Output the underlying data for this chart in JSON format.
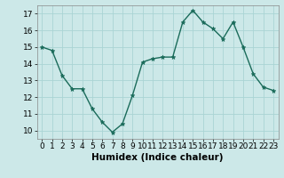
{
  "x": [
    0,
    1,
    2,
    3,
    4,
    5,
    6,
    7,
    8,
    9,
    10,
    11,
    12,
    13,
    14,
    15,
    16,
    17,
    18,
    19,
    20,
    21,
    22,
    23
  ],
  "y": [
    15.0,
    14.8,
    13.3,
    12.5,
    12.5,
    11.3,
    10.5,
    9.9,
    10.4,
    12.1,
    14.1,
    14.3,
    14.4,
    14.4,
    16.5,
    17.2,
    16.5,
    16.1,
    15.5,
    16.5,
    15.0,
    13.4,
    12.6,
    12.4
  ],
  "xlabel": "Humidex (Indice chaleur)",
  "xlim": [
    -0.5,
    23.5
  ],
  "ylim": [
    9.5,
    17.5
  ],
  "yticks": [
    10,
    11,
    12,
    13,
    14,
    15,
    16,
    17
  ],
  "xticks": [
    0,
    1,
    2,
    3,
    4,
    5,
    6,
    7,
    8,
    9,
    10,
    11,
    12,
    13,
    14,
    15,
    16,
    17,
    18,
    19,
    20,
    21,
    22,
    23
  ],
  "line_color": "#1a6b5a",
  "marker": "*",
  "marker_size": 3.5,
  "bg_color": "#cce8e8",
  "grid_color": "#aad4d4",
  "tick_label_fontsize": 6.5,
  "xlabel_fontsize": 7.5,
  "linewidth": 1.0
}
